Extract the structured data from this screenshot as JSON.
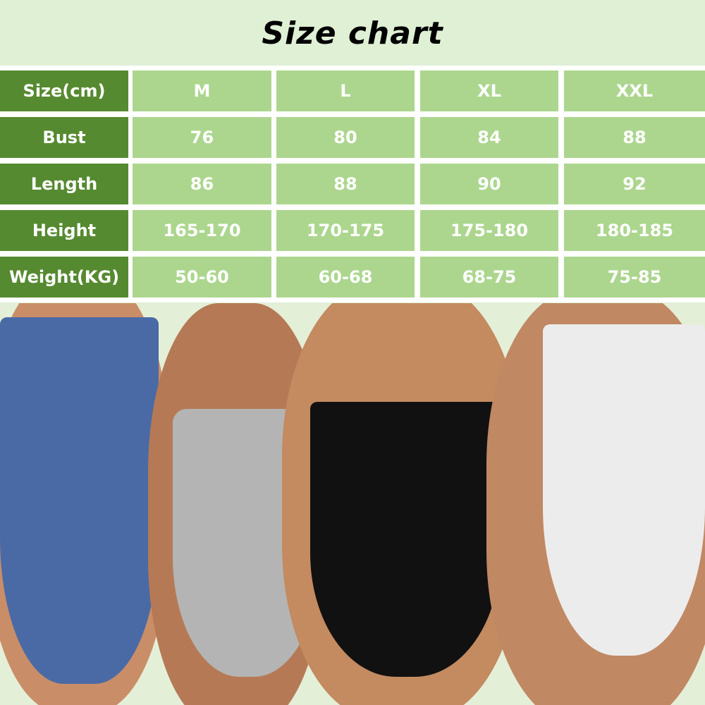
{
  "title": "Size chart",
  "colors": {
    "label_cell": "#568a30",
    "value_cell": "#acd68e",
    "background": "#dff0d4",
    "text": "#ffffff"
  },
  "table": {
    "rows": [
      {
        "label": "Size(cm)",
        "values": [
          "M",
          "L",
          "XL",
          "XXL"
        ]
      },
      {
        "label": "Bust",
        "values": [
          "76",
          "80",
          "84",
          "88"
        ]
      },
      {
        "label": "Length",
        "values": [
          "86",
          "88",
          "90",
          "92"
        ]
      },
      {
        "label": "Height",
        "values": [
          "165-170",
          "170-175",
          "175-180",
          "180-185"
        ]
      },
      {
        "label": "Weight(KG)",
        "values": [
          "50-60",
          "60-68",
          "68-75",
          "75-85"
        ]
      }
    ]
  },
  "photo": {
    "garment_colors": [
      "#4a6aa6",
      "#b4b4b4",
      "#111111",
      "#ececec"
    ]
  }
}
